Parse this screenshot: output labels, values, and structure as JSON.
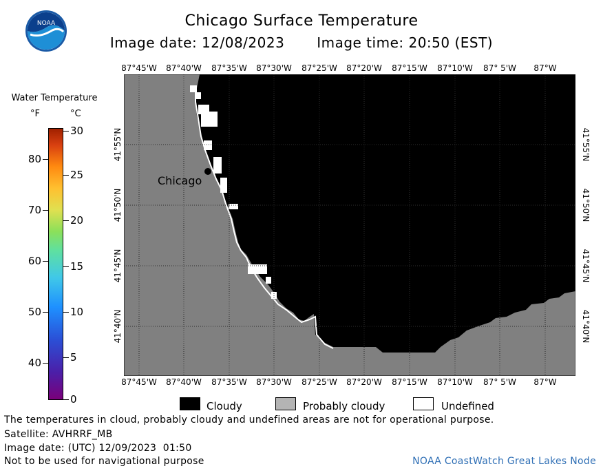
{
  "header": {
    "title": "Chicago Surface Temperature",
    "image_date": "Image date: 12/08/2023",
    "image_time": "Image time: 20:50 (EST)"
  },
  "logo": {
    "text": "NOAA",
    "icon": "noaa-logo-icon"
  },
  "map": {
    "lon_ticks": [
      "87°45'W",
      "87°40'W",
      "87°35'W",
      "87°30'W",
      "87°25'W",
      "87°20'W",
      "87°15'W",
      "87°10'W",
      "87° 5'W",
      "87°W"
    ],
    "lat_ticks": [
      "41°55'N",
      "41°50'N",
      "41°45'N",
      "41°40'N"
    ],
    "city_label": "Chicago",
    "colors": {
      "land": "#808080",
      "cloudy": "#000000",
      "undefined": "#ffffff",
      "gridline": "#3a3a3a"
    }
  },
  "legend": {
    "title": "Water Temperature",
    "unit_f": "°F",
    "unit_c": "°C",
    "f_labels": [
      "80",
      "70",
      "60",
      "50",
      "40"
    ],
    "c_labels": [
      "30",
      "25",
      "20",
      "15",
      "10",
      "5",
      "0"
    ]
  },
  "key": [
    {
      "label": "Cloudy",
      "color": "#000000"
    },
    {
      "label": "Probably cloudy",
      "color": "#b4b4b4"
    },
    {
      "label": "Undefined",
      "color": "#ffffff"
    }
  ],
  "notes": {
    "disclaimer": "The temperatures in cloud, probably cloudy and undefined areas are not for operational purpose.",
    "satellite": "Satellite: AVHRRF_MB",
    "utc_date": "Image date: (UTC) 12/09/2023  01:50",
    "nav": "Not to be used for navigational purpose",
    "credit": "NOAA CoastWatch Great Lakes Node"
  }
}
